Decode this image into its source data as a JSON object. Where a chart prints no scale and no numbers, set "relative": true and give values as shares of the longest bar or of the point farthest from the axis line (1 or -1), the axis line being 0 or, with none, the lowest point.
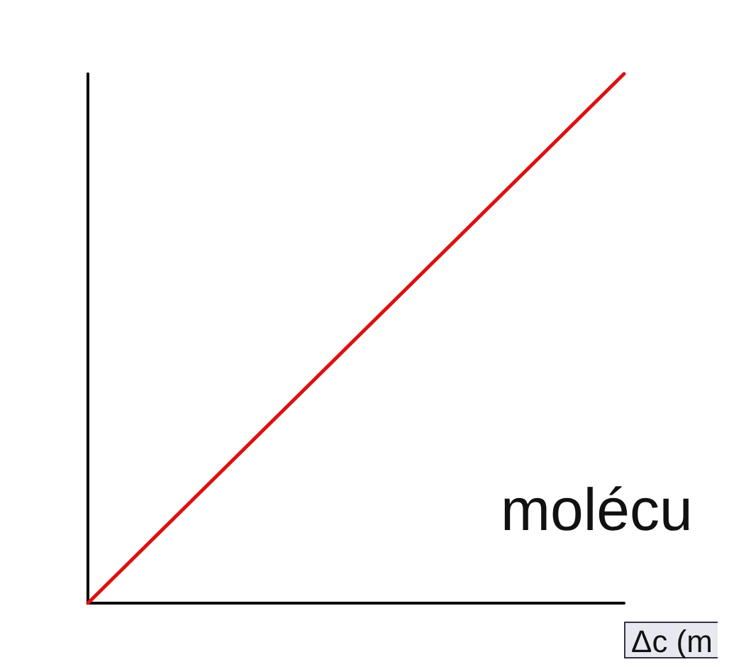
{
  "chart_data": {
    "type": "line",
    "relative": true,
    "categories": [
      null,
      null
    ],
    "series": [
      {
        "color": "#dd1111",
        "values": [
          0,
          1
        ]
      }
    ],
    "xlabel": "Δc (m",
    "annotations": [
      "molécu"
    ],
    "marker": "none",
    "grid": false
  }
}
